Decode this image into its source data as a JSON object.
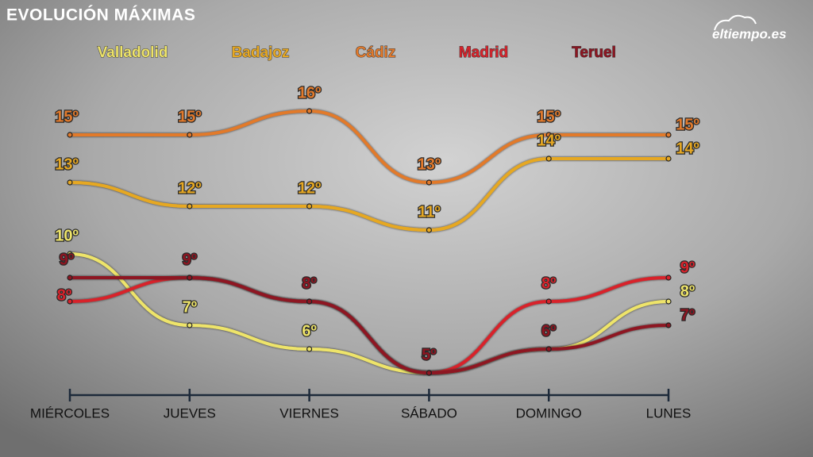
{
  "brand": "eltiempo.es",
  "chart_data": {
    "type": "line",
    "title": "EVOLUCIÓN MÁXIMAS",
    "categories": [
      "MIÉRCOLES",
      "JUEVES",
      "VIERNES",
      "SÁBADO",
      "DOMINGO",
      "LUNES"
    ],
    "series": [
      {
        "name": "Valladolid",
        "color": "#eee46a",
        "values": [
          10,
          7,
          6,
          5,
          6,
          8
        ],
        "value_labels": [
          "10º",
          "7º",
          "6º",
          null,
          null,
          "8º"
        ]
      },
      {
        "name": "Badajoz",
        "color": "#e6a823",
        "values": [
          13,
          12,
          12,
          11,
          14,
          14
        ],
        "value_labels": [
          "13º",
          "12º",
          "12º",
          "11º",
          "14º",
          "14º"
        ]
      },
      {
        "name": "Cádiz",
        "color": "#e27a2c",
        "values": [
          15,
          15,
          16,
          13,
          15,
          15
        ],
        "value_labels": [
          "15º",
          "15º",
          "16º",
          "13º",
          "15º",
          "15º"
        ]
      },
      {
        "name": "Madrid",
        "color": "#d8232b",
        "values": [
          8,
          9,
          8,
          5,
          8,
          9
        ],
        "value_labels": [
          "8º",
          null,
          null,
          null,
          "8º",
          "9º"
        ]
      },
      {
        "name": "Teruel",
        "color": "#8e1521",
        "values": [
          9,
          9,
          8,
          5,
          6,
          7
        ],
        "value_labels": [
          "9º",
          "9º",
          "8º",
          "5º",
          "6º",
          "7º"
        ]
      }
    ]
  }
}
